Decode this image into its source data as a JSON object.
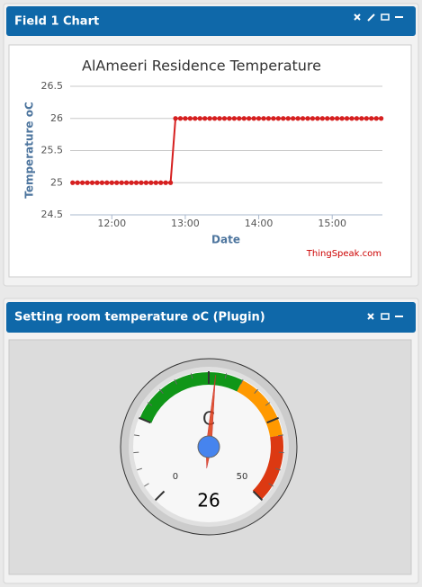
{
  "panels": [
    {
      "title": "Field 1 Chart"
    },
    {
      "title": "Setting room temperature oC (Plugin)"
    }
  ],
  "chart_data": [
    {
      "type": "line",
      "title": "AlAmeeri Residence Temperature",
      "x_label": "Date",
      "y_label": "Temperature oC",
      "credit": "ThingSpeak.com",
      "x": [
        688,
        692,
        696,
        700,
        704,
        708,
        712,
        716,
        720,
        724,
        728,
        732,
        736,
        740,
        744,
        748,
        752,
        756,
        760,
        764,
        768,
        772,
        776,
        780,
        784,
        788,
        792,
        796,
        800,
        804,
        808,
        812,
        816,
        820,
        824,
        828,
        832,
        836,
        840,
        844,
        848,
        852,
        856,
        860,
        864,
        868,
        872,
        876,
        880,
        884,
        888,
        892,
        896,
        900,
        904,
        908,
        912,
        916,
        920,
        924,
        928,
        932,
        936,
        940
      ],
      "values": [
        25,
        25,
        25,
        25,
        25,
        25,
        25,
        25,
        25,
        25,
        25,
        25,
        25,
        25,
        25,
        25,
        25,
        25,
        25,
        25,
        25,
        26,
        26,
        26,
        26,
        26,
        26,
        26,
        26,
        26,
        26,
        26,
        26,
        26,
        26,
        26,
        26,
        26,
        26,
        26,
        26,
        26,
        26,
        26,
        26,
        26,
        26,
        26,
        26,
        26,
        26,
        26,
        26,
        26,
        26,
        26,
        26,
        26,
        26,
        26,
        26,
        26,
        26,
        26
      ],
      "color": "#d62020",
      "xlim": [
        686,
        941
      ],
      "xticks": [
        {
          "value": 720,
          "label": "12:00"
        },
        {
          "value": 780,
          "label": "13:00"
        },
        {
          "value": 840,
          "label": "14:00"
        },
        {
          "value": 900,
          "label": "15:00"
        }
      ],
      "ylim": [
        24.5,
        26.5
      ],
      "yticks": [
        24.5,
        25,
        25.5,
        26,
        26.5
      ],
      "grid": true
    },
    {
      "type": "gauge",
      "label": "C",
      "value": 26,
      "range": [
        0,
        50
      ],
      "major_ticks": [
        0,
        12.5,
        25,
        37.5,
        50
      ],
      "bands": [
        {
          "from": 12.5,
          "to": 30,
          "color": "#109618"
        },
        {
          "from": 30,
          "to": 40,
          "color": "#ff9900"
        },
        {
          "from": 40,
          "to": 50,
          "color": "#dc3912"
        }
      ]
    }
  ]
}
